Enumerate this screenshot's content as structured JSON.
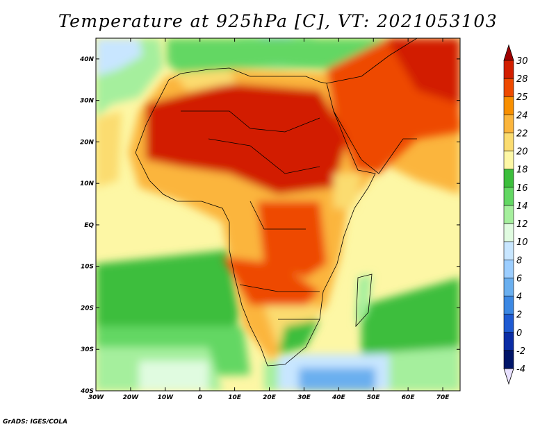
{
  "title": "Temperature at 925hPa [C], VT: 2021053103",
  "credit": "GrADS: IGES/COLA",
  "map": {
    "lon_range": [
      -30,
      75
    ],
    "lat_range": [
      -40,
      45
    ],
    "lon_ticks": [
      {
        "value": -30,
        "label": "30W"
      },
      {
        "value": -20,
        "label": "20W"
      },
      {
        "value": -10,
        "label": "10W"
      },
      {
        "value": 0,
        "label": "0"
      },
      {
        "value": 10,
        "label": "10E"
      },
      {
        "value": 20,
        "label": "20E"
      },
      {
        "value": 30,
        "label": "30E"
      },
      {
        "value": 40,
        "label": "40E"
      },
      {
        "value": 50,
        "label": "50E"
      },
      {
        "value": 60,
        "label": "60E"
      },
      {
        "value": 70,
        "label": "70E"
      }
    ],
    "lat_ticks": [
      {
        "value": 40,
        "label": "40N"
      },
      {
        "value": 30,
        "label": "30N"
      },
      {
        "value": 20,
        "label": "20N"
      },
      {
        "value": 10,
        "label": "10N"
      },
      {
        "value": 0,
        "label": "EQ"
      },
      {
        "value": -10,
        "label": "10S"
      },
      {
        "value": -20,
        "label": "20S"
      },
      {
        "value": -30,
        "label": "30S"
      },
      {
        "value": -40,
        "label": "40S"
      }
    ]
  },
  "colorbar": {
    "levels": [
      {
        "label": "30",
        "color": "#a50000"
      },
      {
        "label": "28",
        "color": "#d21e00"
      },
      {
        "label": "25",
        "color": "#ee4a00"
      },
      {
        "label": "24",
        "color": "#f88f00"
      },
      {
        "label": "22",
        "color": "#fbb53c"
      },
      {
        "label": "20",
        "color": "#fbdc70"
      },
      {
        "label": "18",
        "color": "#fdf7a5"
      },
      {
        "label": "16",
        "color": "#3cbe3c"
      },
      {
        "label": "14",
        "color": "#63d763"
      },
      {
        "label": "12",
        "color": "#a5ef9d"
      },
      {
        "label": "10",
        "color": "#e0fbe0"
      },
      {
        "label": "8",
        "color": "#c8e6ff"
      },
      {
        "label": "6",
        "color": "#9cceff"
      },
      {
        "label": "4",
        "color": "#6aafef"
      },
      {
        "label": "2",
        "color": "#3c88e3"
      },
      {
        "label": "0",
        "color": "#1e5ad2"
      },
      {
        "label": "-2",
        "color": "#0a2ca5"
      },
      {
        "label": "-4",
        "color": "#001468"
      }
    ],
    "top_color": "#a00000",
    "bottom_color": "#e8e0ff"
  }
}
